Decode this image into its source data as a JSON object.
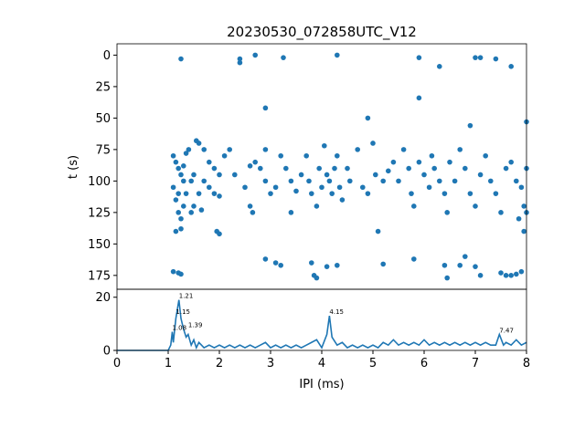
{
  "chart_data": [
    {
      "type": "scatter",
      "title": "20230530_072858UTC_V12",
      "y_label": "t (s)",
      "color": "#1f77b4",
      "xlim": [
        0,
        8
      ],
      "ylim": [
        186,
        -9
      ],
      "yticks": [
        0,
        25,
        50,
        75,
        100,
        125,
        150,
        175
      ],
      "x": [
        1.25,
        2.4,
        2.4,
        2.7,
        3.25,
        4.3,
        5.9,
        6.3,
        7.0,
        7.1,
        7.4,
        7.7,
        2.9,
        5.9,
        4.9,
        6.9,
        8.0,
        1.1,
        1.15,
        1.2,
        1.25,
        1.3,
        1.35,
        1.4,
        1.3,
        1.2,
        1.15,
        1.1,
        1.2,
        1.25,
        1.15,
        1.25,
        1.3,
        1.35,
        1.45,
        1.5,
        1.55,
        1.6,
        1.7,
        1.8,
        1.7,
        1.6,
        1.5,
        1.45,
        1.65,
        1.8,
        1.9,
        2.0,
        2.1,
        2.2,
        1.95,
        2.0,
        1.9,
        2.0,
        2.3,
        2.5,
        2.6,
        2.7,
        2.8,
        2.9,
        3.0,
        3.1,
        2.6,
        2.65,
        2.9,
        3.2,
        3.3,
        3.4,
        3.5,
        3.4,
        3.6,
        3.7,
        3.75,
        3.8,
        3.9,
        3.95,
        4.0,
        4.05,
        4.1,
        4.15,
        4.2,
        4.25,
        4.3,
        4.35,
        4.4,
        4.5,
        4.55,
        4.7,
        4.8,
        4.9,
        5.0,
        5.05,
        5.1,
        5.2,
        5.3,
        5.4,
        5.5,
        5.6,
        5.7,
        5.75,
        5.8,
        5.9,
        6.0,
        6.1,
        6.15,
        6.2,
        6.3,
        6.4,
        6.45,
        6.5,
        6.6,
        6.7,
        6.8,
        6.9,
        7.0,
        7.1,
        7.2,
        7.3,
        7.4,
        7.5,
        7.6,
        7.7,
        7.8,
        7.9,
        8.0,
        7.95,
        8.0,
        7.85,
        7.95,
        1.1,
        1.2,
        1.25,
        2.9,
        3.1,
        3.2,
        3.8,
        3.85,
        3.9,
        4.1,
        4.3,
        5.2,
        5.8,
        6.4,
        6.45,
        6.7,
        6.8,
        7.0,
        7.1,
        7.5,
        7.6,
        7.7,
        7.8,
        7.9
      ],
      "values": [
        3,
        3,
        6,
        0,
        2,
        0,
        2,
        9,
        2,
        2,
        3,
        9,
        42,
        34,
        50,
        56,
        53,
        80,
        85,
        90,
        95,
        88,
        78,
        75,
        100,
        110,
        115,
        105,
        125,
        130,
        140,
        138,
        120,
        110,
        100,
        95,
        68,
        70,
        75,
        85,
        100,
        110,
        120,
        125,
        123,
        105,
        90,
        95,
        80,
        75,
        140,
        142,
        110,
        112,
        95,
        105,
        88,
        85,
        90,
        100,
        110,
        105,
        120,
        125,
        75,
        80,
        90,
        100,
        108,
        125,
        95,
        80,
        100,
        110,
        120,
        90,
        105,
        72,
        95,
        100,
        110,
        90,
        80,
        105,
        115,
        90,
        100,
        75,
        105,
        110,
        70,
        95,
        140,
        100,
        92,
        85,
        100,
        75,
        90,
        110,
        120,
        85,
        95,
        105,
        80,
        90,
        100,
        110,
        125,
        85,
        100,
        75,
        90,
        110,
        120,
        95,
        80,
        100,
        110,
        125,
        90,
        85,
        100,
        105,
        90,
        120,
        125,
        130,
        140,
        172,
        173,
        174,
        162,
        165,
        167,
        165,
        175,
        177,
        168,
        167,
        166,
        162,
        167,
        177,
        167,
        160,
        168,
        175,
        173,
        175,
        175,
        174,
        172
      ]
    },
    {
      "type": "line",
      "x_label": "IPI (ms)",
      "color": "#1f77b4",
      "xlim": [
        0,
        8
      ],
      "ylim": [
        0,
        23
      ],
      "xticks": [
        0,
        1,
        2,
        3,
        4,
        5,
        6,
        7,
        8
      ],
      "yticks": [
        0,
        20
      ],
      "x": [
        0,
        1.0,
        1.05,
        1.08,
        1.1,
        1.15,
        1.21,
        1.25,
        1.3,
        1.35,
        1.39,
        1.45,
        1.5,
        1.55,
        1.6,
        1.7,
        1.8,
        1.9,
        2.0,
        2.1,
        2.2,
        2.3,
        2.4,
        2.5,
        2.6,
        2.7,
        2.8,
        2.9,
        3.0,
        3.1,
        3.2,
        3.3,
        3.4,
        3.5,
        3.6,
        3.7,
        3.8,
        3.9,
        4.0,
        4.1,
        4.15,
        4.2,
        4.3,
        4.4,
        4.5,
        4.6,
        4.7,
        4.8,
        4.9,
        5.0,
        5.1,
        5.2,
        5.3,
        5.4,
        5.5,
        5.6,
        5.7,
        5.8,
        5.9,
        6.0,
        6.1,
        6.2,
        6.3,
        6.4,
        6.5,
        6.6,
        6.7,
        6.8,
        6.9,
        7.0,
        7.1,
        7.2,
        7.3,
        7.4,
        7.47,
        7.55,
        7.6,
        7.7,
        7.8,
        7.9,
        8.0
      ],
      "values": [
        0,
        0,
        2,
        7,
        3,
        12,
        19,
        12,
        8,
        5,
        6,
        2,
        4,
        1,
        3,
        1,
        2,
        1,
        2,
        1,
        2,
        1,
        2,
        1,
        2,
        1,
        2,
        3,
        1,
        2,
        1,
        2,
        1,
        2,
        1,
        2,
        3,
        4,
        1,
        6,
        13,
        5,
        2,
        3,
        1,
        2,
        1,
        2,
        1,
        2,
        1,
        3,
        2,
        4,
        2,
        3,
        2,
        3,
        2,
        4,
        2,
        3,
        2,
        3,
        2,
        3,
        2,
        3,
        2,
        3,
        2,
        3,
        2,
        2,
        6,
        2,
        3,
        2,
        4,
        2,
        3
      ],
      "annotations": [
        {
          "x": 1.21,
          "y": 19,
          "text": "1.21"
        },
        {
          "x": 1.15,
          "y": 13,
          "text": "1.15"
        },
        {
          "x": 1.08,
          "y": 7,
          "text": "1.08"
        },
        {
          "x": 1.39,
          "y": 8,
          "text": "1.39"
        },
        {
          "x": 4.15,
          "y": 13,
          "text": "4.15"
        },
        {
          "x": 7.47,
          "y": 6,
          "text": "7.47"
        }
      ]
    }
  ]
}
